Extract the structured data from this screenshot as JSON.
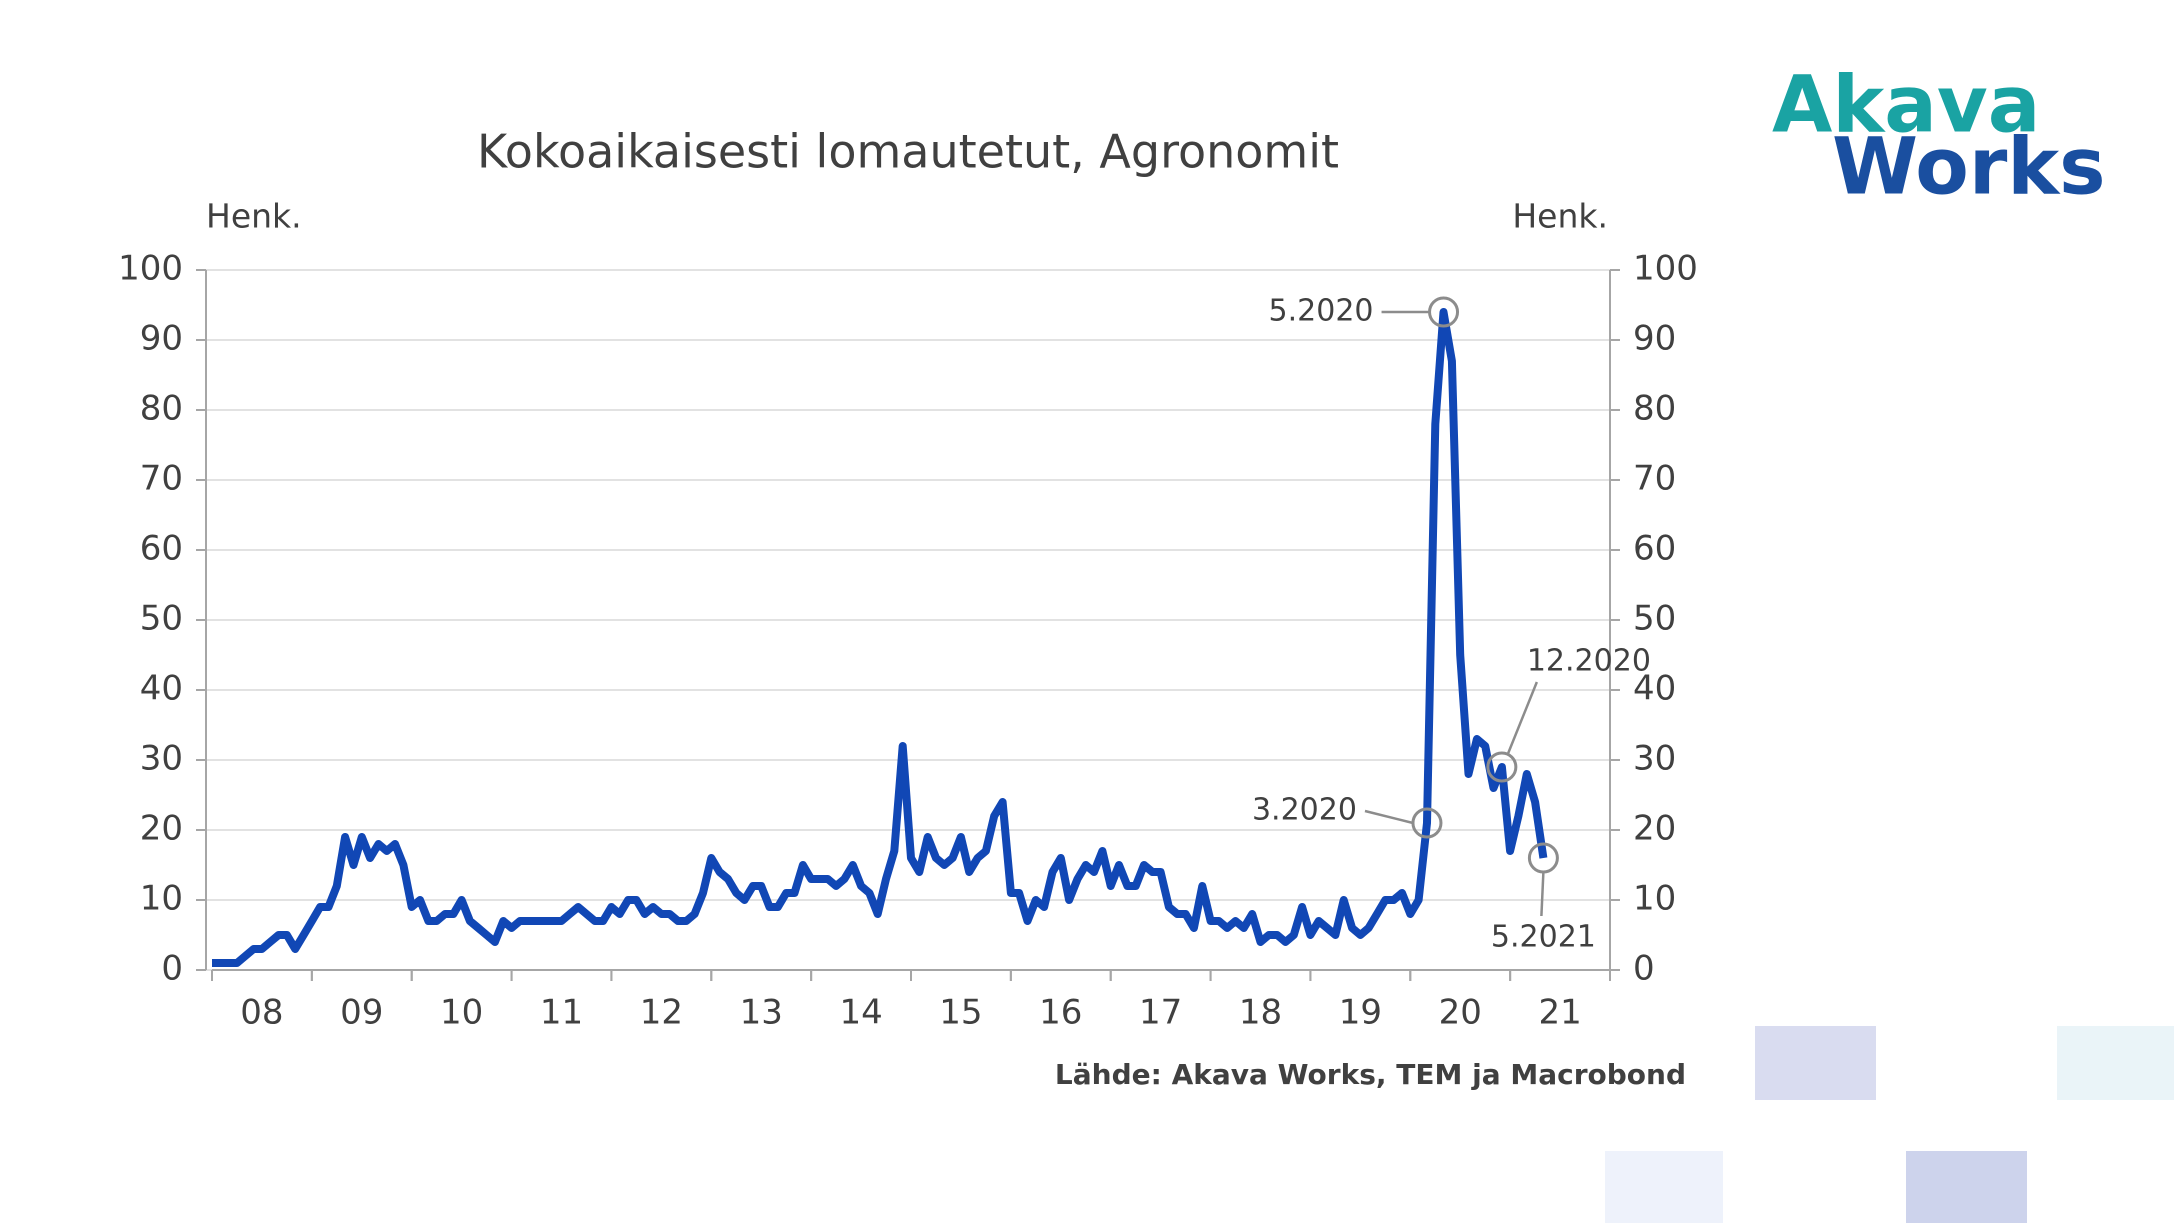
{
  "chart_data": {
    "type": "line",
    "title": "Kokoaikaisesti lomautetut, Agronomit",
    "y_label": "Henk.",
    "y2_label": "Henk.",
    "source": "Lähde: Akava Works, TEM ja Macrobond",
    "logo": [
      "Akava",
      "Works"
    ],
    "x": [
      8,
      8.083,
      8.167,
      8.25,
      8.333,
      8.417,
      8.5,
      8.583,
      8.667,
      8.75,
      8.833,
      8.917,
      9,
      9.083,
      9.167,
      9.25,
      9.333,
      9.417,
      9.5,
      9.583,
      9.667,
      9.75,
      9.833,
      9.917,
      10,
      10.083,
      10.167,
      10.25,
      10.333,
      10.417,
      10.5,
      10.583,
      10.667,
      10.75,
      10.833,
      10.917,
      11,
      11.083,
      11.167,
      11.25,
      11.333,
      11.417,
      11.5,
      11.583,
      11.667,
      11.75,
      11.833,
      11.917,
      12,
      12.083,
      12.167,
      12.25,
      12.333,
      12.417,
      12.5,
      12.583,
      12.667,
      12.75,
      12.833,
      12.917,
      13,
      13.083,
      13.167,
      13.25,
      13.333,
      13.417,
      13.5,
      13.583,
      13.667,
      13.75,
      13.833,
      13.917,
      14,
      14.083,
      14.167,
      14.25,
      14.333,
      14.417,
      14.5,
      14.583,
      14.667,
      14.75,
      14.833,
      14.917,
      15,
      15.083,
      15.167,
      15.25,
      15.333,
      15.417,
      15.5,
      15.583,
      15.667,
      15.75,
      15.833,
      15.917,
      16,
      16.083,
      16.167,
      16.25,
      16.333,
      16.417,
      16.5,
      16.583,
      16.667,
      16.75,
      16.833,
      16.917,
      17,
      17.083,
      17.167,
      17.25,
      17.333,
      17.417,
      17.5,
      17.583,
      17.667,
      17.75,
      17.833,
      17.917,
      18,
      18.083,
      18.167,
      18.25,
      18.333,
      18.417,
      18.5,
      18.583,
      18.667,
      18.75,
      18.833,
      18.917,
      19,
      19.083,
      19.167,
      19.25,
      19.333,
      19.417,
      19.5,
      19.583,
      19.667,
      19.75,
      19.833,
      19.917,
      20,
      20.083,
      20.167,
      20.25,
      20.333,
      20.417,
      20.5,
      20.583,
      20.667,
      20.75,
      20.833,
      20.917,
      21,
      21.083,
      21.167,
      21.25,
      21.333
    ],
    "series": [
      {
        "name": "Agronomit",
        "color": "#1147b5",
        "values": [
          1,
          1,
          1,
          1,
          2,
          3,
          3,
          4,
          5,
          5,
          3,
          5,
          7,
          9,
          9,
          12,
          19,
          15,
          19,
          16,
          18,
          17,
          18,
          15,
          9,
          10,
          7,
          7,
          8,
          8,
          10,
          7,
          6,
          5,
          4,
          7,
          6,
          7,
          7,
          7,
          7,
          7,
          7,
          8,
          9,
          8,
          7,
          7,
          9,
          8,
          10,
          10,
          8,
          9,
          8,
          8,
          7,
          7,
          8,
          11,
          16,
          14,
          13,
          11,
          10,
          12,
          12,
          9,
          9,
          11,
          11,
          15,
          13,
          13,
          13,
          12,
          13,
          15,
          12,
          11,
          8,
          13,
          17,
          32,
          16,
          14,
          19,
          16,
          15,
          16,
          19,
          14,
          16,
          17,
          22,
          24,
          11,
          11,
          7,
          10,
          9,
          14,
          16,
          10,
          13,
          15,
          14,
          17,
          12,
          15,
          12,
          12,
          15,
          14,
          14,
          9,
          8,
          8,
          6,
          12,
          7,
          7,
          6,
          7,
          6,
          8,
          4,
          5,
          5,
          4,
          5,
          9,
          5,
          7,
          6,
          5,
          10,
          6,
          5,
          6,
          8,
          10,
          10,
          11,
          8,
          10,
          21,
          78,
          94,
          87,
          45,
          28,
          33,
          32,
          26,
          29,
          17,
          22,
          28,
          24,
          16
        ]
      }
    ],
    "annotations": [
      "3.2020",
      "5.2020",
      "12.2020",
      "5.2021"
    ],
    "xlim": [
      8,
      22
    ],
    "xticks": [
      {
        "value": 8.5,
        "label": "08"
      },
      {
        "value": 9.5,
        "label": "09"
      },
      {
        "value": 10.5,
        "label": "10"
      },
      {
        "value": 11.5,
        "label": "11"
      },
      {
        "value": 12.5,
        "label": "12"
      },
      {
        "value": 13.5,
        "label": "13"
      },
      {
        "value": 14.5,
        "label": "14"
      },
      {
        "value": 15.5,
        "label": "15"
      },
      {
        "value": 16.5,
        "label": "16"
      },
      {
        "value": 17.5,
        "label": "17"
      },
      {
        "value": 18.5,
        "label": "18"
      },
      {
        "value": 19.5,
        "label": "19"
      },
      {
        "value": 20.5,
        "label": "20"
      },
      {
        "value": 21.5,
        "label": "21"
      }
    ],
    "ylim": [
      0,
      100
    ],
    "yticks": [
      0,
      10,
      20,
      30,
      40,
      50,
      60,
      70,
      80,
      90,
      100
    ],
    "y2lim": [
      0,
      100
    ],
    "y2ticks": [
      0,
      10,
      20,
      30,
      40,
      50,
      60,
      70,
      80,
      90,
      100
    ],
    "grid": true
  }
}
